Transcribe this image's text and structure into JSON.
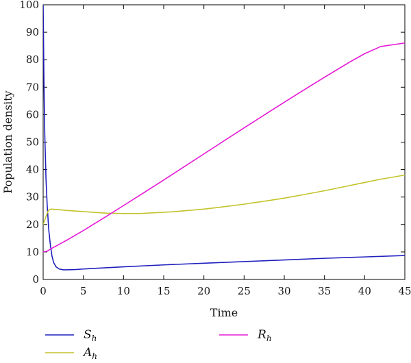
{
  "chart_data": {
    "type": "line",
    "xlabel": "Time",
    "ylabel": "Population density",
    "xlim": [
      0,
      45
    ],
    "ylim": [
      0,
      100
    ],
    "xticks": [
      0,
      5,
      10,
      15,
      20,
      25,
      30,
      35,
      40,
      45
    ],
    "yticks": [
      0,
      10,
      20,
      30,
      40,
      50,
      60,
      70,
      80,
      90,
      100
    ],
    "grid": false,
    "legend_position": "bottom",
    "series": [
      {
        "name": "S",
        "name_subscript": "h",
        "color": "#1f1fbf",
        "x": [
          0,
          0.1,
          0.2,
          0.35,
          0.5,
          0.7,
          0.9,
          1.1,
          1.3,
          1.6,
          2.0,
          2.5,
          3.0,
          4,
          5,
          10,
          15,
          20,
          25,
          30,
          35,
          40,
          45
        ],
        "y": [
          100,
          72,
          53,
          37,
          27,
          18,
          12.5,
          8.5,
          6.2,
          4.6,
          3.8,
          3.5,
          3.5,
          3.6,
          3.8,
          4.6,
          5.3,
          5.9,
          6.5,
          7.1,
          7.7,
          8.2,
          8.7
        ]
      },
      {
        "name": "A",
        "name_subscript": "h",
        "color": "#c2c22a",
        "x": [
          0,
          0.3,
          0.6,
          0.8,
          1,
          2,
          3,
          5,
          7,
          8,
          10,
          12,
          14,
          16,
          18,
          20,
          22,
          25,
          28,
          30,
          33,
          35,
          38,
          40,
          42,
          45
        ],
        "y": [
          20,
          22.5,
          24.8,
          25.5,
          25.6,
          25.4,
          25.1,
          24.7,
          24.3,
          24.1,
          24.0,
          24.0,
          24.3,
          24.6,
          25.1,
          25.6,
          26.3,
          27.4,
          28.7,
          29.6,
          31.2,
          32.3,
          34.1,
          35.3,
          36.5,
          38.0
        ]
      },
      {
        "name": "R",
        "name_subscript": "h",
        "color": "#e619d6",
        "x": [
          0,
          0.5,
          1,
          2,
          3,
          5,
          8,
          10,
          12,
          15,
          18,
          20,
          22,
          25,
          28,
          30,
          32,
          35,
          38,
          40,
          42,
          45
        ],
        "y": [
          10,
          10.3,
          11.2,
          12.8,
          14.4,
          17.8,
          23.2,
          26.9,
          30.6,
          36.2,
          41.9,
          45.7,
          49.5,
          55.2,
          60.8,
          64.5,
          68.2,
          73.6,
          78.9,
          82.2,
          84.8,
          86.1
        ]
      }
    ]
  }
}
